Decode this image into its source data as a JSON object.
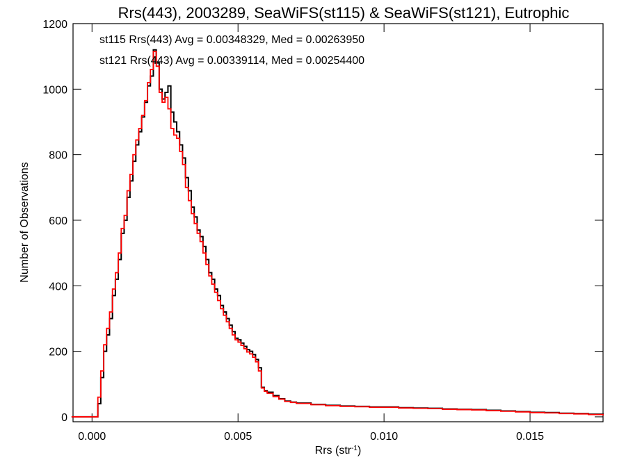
{
  "chart_data": {
    "type": "line",
    "title": "Rrs(443), 2003289, SeaWiFS(st115) & SeaWiFS(st121), Eutrophic",
    "xlabel": "Rrs (str",
    "xlabel_sup": "-1",
    "xlabel_end": ")",
    "ylabel": "Number of Observations",
    "xlim": [
      -0.00065,
      0.0175
    ],
    "ylim": [
      -15,
      1200
    ],
    "x_ticks": [
      0.0,
      0.005,
      0.01,
      0.015
    ],
    "x_tick_labels": [
      "0.000",
      "0.005",
      "0.010",
      "0.015"
    ],
    "y_ticks": [
      0,
      200,
      400,
      600,
      800,
      1000,
      1200
    ],
    "y_tick_labels": [
      "0",
      "200",
      "400",
      "600",
      "800",
      "1000",
      "1200"
    ],
    "grid": false,
    "series": [
      {
        "name": "st115",
        "color": "#000000",
        "stats_text": "st115 Rrs(443) Avg = 0.00348329, Med = 0.00263950",
        "points": [
          [
            -0.0007,
            0
          ],
          [
            0.0001,
            0
          ],
          [
            0.0002,
            40
          ],
          [
            0.0003,
            120
          ],
          [
            0.0004,
            200
          ],
          [
            0.0005,
            250
          ],
          [
            0.0006,
            300
          ],
          [
            0.0007,
            370
          ],
          [
            0.0008,
            420
          ],
          [
            0.0009,
            480
          ],
          [
            0.001,
            560
          ],
          [
            0.0011,
            600
          ],
          [
            0.0012,
            670
          ],
          [
            0.0013,
            720
          ],
          [
            0.0014,
            780
          ],
          [
            0.0015,
            830
          ],
          [
            0.0016,
            870
          ],
          [
            0.0017,
            915
          ],
          [
            0.0018,
            960
          ],
          [
            0.0019,
            1010
          ],
          [
            0.002,
            1040
          ],
          [
            0.0021,
            1120
          ],
          [
            0.0022,
            1080
          ],
          [
            0.0023,
            1000
          ],
          [
            0.0024,
            970
          ],
          [
            0.0025,
            990
          ],
          [
            0.0026,
            1010
          ],
          [
            0.0027,
            930
          ],
          [
            0.0028,
            900
          ],
          [
            0.0029,
            870
          ],
          [
            0.003,
            830
          ],
          [
            0.0031,
            790
          ],
          [
            0.0032,
            730
          ],
          [
            0.0033,
            690
          ],
          [
            0.0034,
            640
          ],
          [
            0.0035,
            610
          ],
          [
            0.0036,
            570
          ],
          [
            0.0037,
            550
          ],
          [
            0.0038,
            520
          ],
          [
            0.0039,
            480
          ],
          [
            0.004,
            440
          ],
          [
            0.0041,
            420
          ],
          [
            0.0042,
            390
          ],
          [
            0.0043,
            370
          ],
          [
            0.0044,
            340
          ],
          [
            0.0045,
            320
          ],
          [
            0.0046,
            300
          ],
          [
            0.0047,
            280
          ],
          [
            0.0048,
            260
          ],
          [
            0.0049,
            240
          ],
          [
            0.005,
            235
          ],
          [
            0.0051,
            225
          ],
          [
            0.0052,
            215
          ],
          [
            0.0053,
            205
          ],
          [
            0.0054,
            200
          ],
          [
            0.0055,
            190
          ],
          [
            0.0056,
            175
          ],
          [
            0.0057,
            150
          ],
          [
            0.0058,
            90
          ],
          [
            0.0059,
            80
          ],
          [
            0.006,
            75
          ],
          [
            0.0062,
            65
          ],
          [
            0.0064,
            55
          ],
          [
            0.0066,
            48
          ],
          [
            0.0068,
            45
          ],
          [
            0.007,
            42
          ],
          [
            0.0075,
            38
          ],
          [
            0.008,
            35
          ],
          [
            0.0085,
            33
          ],
          [
            0.009,
            32
          ],
          [
            0.0095,
            30
          ],
          [
            0.01,
            30
          ],
          [
            0.0105,
            28
          ],
          [
            0.011,
            27
          ],
          [
            0.0115,
            26
          ],
          [
            0.012,
            24
          ],
          [
            0.0125,
            23
          ],
          [
            0.013,
            22
          ],
          [
            0.0135,
            20
          ],
          [
            0.014,
            18
          ],
          [
            0.0145,
            16
          ],
          [
            0.015,
            14
          ],
          [
            0.0155,
            13
          ],
          [
            0.016,
            11
          ],
          [
            0.0165,
            10
          ],
          [
            0.017,
            8
          ],
          [
            0.0175,
            5
          ]
        ]
      },
      {
        "name": "st121",
        "color": "#ff0000",
        "stats_text": "st121 Rrs(443) Avg = 0.00339114, Med = 0.00254400",
        "points": [
          [
            -0.0007,
            0
          ],
          [
            0.0001,
            0
          ],
          [
            0.0002,
            60
          ],
          [
            0.0003,
            140
          ],
          [
            0.0004,
            220
          ],
          [
            0.0005,
            270
          ],
          [
            0.0006,
            320
          ],
          [
            0.0007,
            390
          ],
          [
            0.0008,
            440
          ],
          [
            0.0009,
            500
          ],
          [
            0.001,
            575
          ],
          [
            0.0011,
            615
          ],
          [
            0.0012,
            690
          ],
          [
            0.0013,
            740
          ],
          [
            0.0014,
            800
          ],
          [
            0.0015,
            845
          ],
          [
            0.0016,
            880
          ],
          [
            0.0017,
            920
          ],
          [
            0.0018,
            965
          ],
          [
            0.0019,
            1020
          ],
          [
            0.002,
            1060
          ],
          [
            0.0021,
            1115
          ],
          [
            0.0022,
            1070
          ],
          [
            0.0023,
            990
          ],
          [
            0.0024,
            960
          ],
          [
            0.0025,
            975
          ],
          [
            0.0026,
            940
          ],
          [
            0.0027,
            880
          ],
          [
            0.0028,
            860
          ],
          [
            0.0029,
            850
          ],
          [
            0.003,
            810
          ],
          [
            0.0031,
            770
          ],
          [
            0.0032,
            700
          ],
          [
            0.0033,
            660
          ],
          [
            0.0034,
            620
          ],
          [
            0.0035,
            590
          ],
          [
            0.0036,
            560
          ],
          [
            0.0037,
            535
          ],
          [
            0.0038,
            500
          ],
          [
            0.0039,
            465
          ],
          [
            0.004,
            430
          ],
          [
            0.0041,
            405
          ],
          [
            0.0042,
            380
          ],
          [
            0.0043,
            355
          ],
          [
            0.0044,
            330
          ],
          [
            0.0045,
            310
          ],
          [
            0.0046,
            290
          ],
          [
            0.0047,
            270
          ],
          [
            0.0048,
            250
          ],
          [
            0.0049,
            235
          ],
          [
            0.005,
            228
          ],
          [
            0.0051,
            218
          ],
          [
            0.0052,
            208
          ],
          [
            0.0053,
            198
          ],
          [
            0.0054,
            192
          ],
          [
            0.0055,
            182
          ],
          [
            0.0056,
            168
          ],
          [
            0.0057,
            140
          ],
          [
            0.0058,
            88
          ],
          [
            0.0059,
            78
          ],
          [
            0.006,
            72
          ],
          [
            0.0062,
            62
          ],
          [
            0.0064,
            54
          ],
          [
            0.0066,
            47
          ],
          [
            0.0068,
            44
          ],
          [
            0.007,
            41
          ],
          [
            0.0075,
            37
          ],
          [
            0.008,
            34
          ],
          [
            0.0085,
            32
          ],
          [
            0.009,
            31
          ],
          [
            0.0095,
            29
          ],
          [
            0.01,
            29
          ],
          [
            0.0105,
            27
          ],
          [
            0.011,
            26
          ],
          [
            0.0115,
            25
          ],
          [
            0.012,
            23
          ],
          [
            0.0125,
            22
          ],
          [
            0.013,
            21
          ],
          [
            0.0135,
            19
          ],
          [
            0.014,
            17
          ],
          [
            0.0145,
            15
          ],
          [
            0.015,
            13
          ],
          [
            0.0155,
            12
          ],
          [
            0.016,
            10
          ],
          [
            0.0165,
            9
          ],
          [
            0.017,
            7
          ],
          [
            0.0175,
            4
          ]
        ]
      }
    ]
  }
}
